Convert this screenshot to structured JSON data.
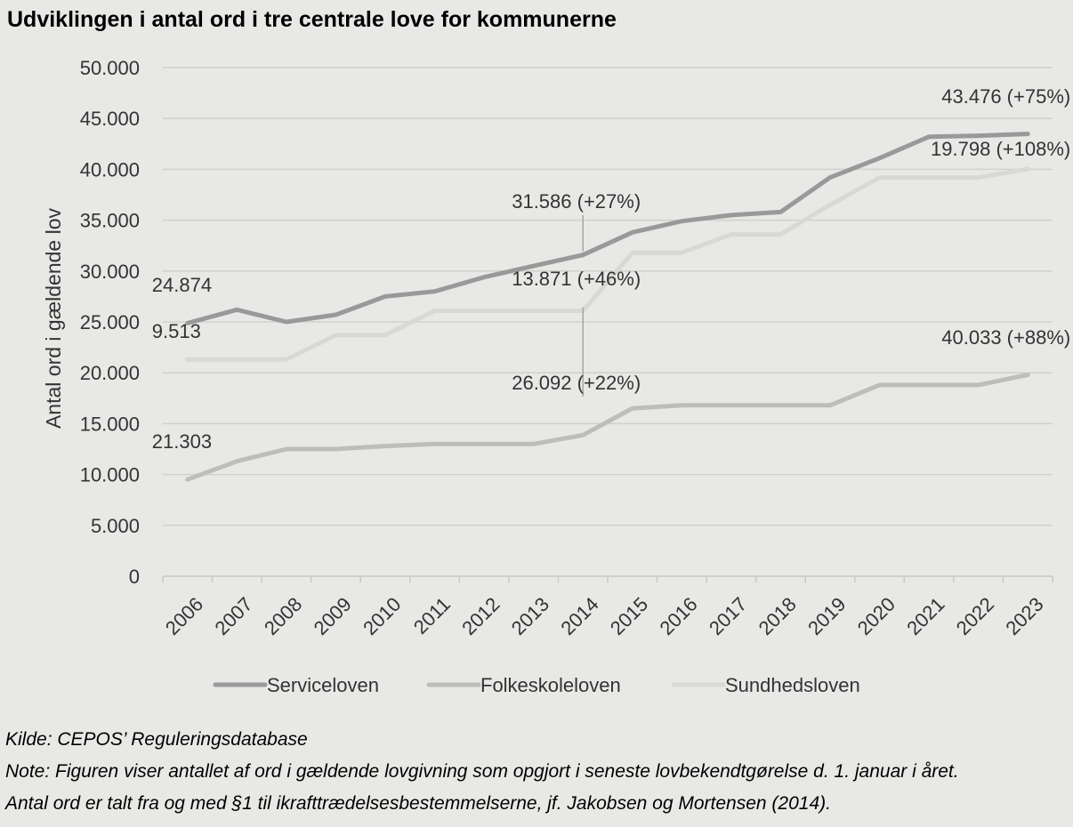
{
  "title": "Udviklingen i antal ord i tre centrale love for kommunerne",
  "source": "Kilde: CEPOS’ Reguleringsdatabase",
  "note_line1": "Note: Figuren viser antallet af ord i gældende lovgivning som opgjort i seneste lovbekendtgørelse d. 1. januar i året.",
  "note_line2": "Antal ord er talt fra og med §1 til ikrafttrædelsesbestemmelserne, jf. Jakobsen og Mortensen (2014).",
  "chart_data": {
    "type": "line",
    "title": "Udviklingen i antal ord i tre centrale love for kommunerne",
    "xlabel": "",
    "ylabel": "Antal ord i gældende lov",
    "ylim": [
      0,
      50000
    ],
    "yticks": [
      0,
      5000,
      10000,
      15000,
      20000,
      25000,
      30000,
      35000,
      40000,
      45000,
      50000
    ],
    "ytick_labels": [
      "0",
      "5.000",
      "10.000",
      "15.000",
      "20.000",
      "25.000",
      "30.000",
      "35.000",
      "40.000",
      "45.000",
      "50.000"
    ],
    "categories": [
      "2006",
      "2007",
      "2008",
      "2009",
      "2010",
      "2011",
      "2012",
      "2013",
      "2014",
      "2015",
      "2016",
      "2017",
      "2018",
      "2019",
      "2020",
      "2021",
      "2022",
      "2023"
    ],
    "grid": "horizontal",
    "legend_position": "bottom",
    "series": [
      {
        "name": "Serviceloven",
        "color": "#999999",
        "values": [
          24874,
          26200,
          25000,
          25700,
          27500,
          28000,
          29400,
          30500,
          31586,
          33800,
          34900,
          35500,
          35800,
          39200,
          41100,
          43200,
          43300,
          43476
        ]
      },
      {
        "name": "Folkeskoleloven",
        "color": "#bdbdb9",
        "values": [
          9513,
          11300,
          12500,
          12500,
          12800,
          13000,
          13000,
          13000,
          13871,
          16500,
          16800,
          16800,
          16800,
          16800,
          18800,
          18800,
          18800,
          19798
        ]
      },
      {
        "name": "Sundhedsloven",
        "color": "#d8d8d5",
        "values": [
          21303,
          21303,
          21303,
          23700,
          23700,
          26092,
          26092,
          26092,
          26092,
          31800,
          31800,
          33600,
          33600,
          36500,
          39200,
          39200,
          39200,
          40033
        ]
      }
    ],
    "annotations": [
      {
        "text": "24.874",
        "category": "2006",
        "value": 24874
      },
      {
        "text": "9.513",
        "category": "2006",
        "value": 9513
      },
      {
        "text": "21.303",
        "category": "2006",
        "value": 21303
      },
      {
        "text": "31.586 (+27%)",
        "category": "2014",
        "value": 31586
      },
      {
        "text": "13.871 (+46%)",
        "category": "2014",
        "value": 13871
      },
      {
        "text": "26.092 (+22%)",
        "category": "2014",
        "value": 26092
      },
      {
        "text": "43.476 (+75%)",
        "category": "2023",
        "value": 43476
      },
      {
        "text": "19.798 (+108%)",
        "category": "2023",
        "value": 19798
      },
      {
        "text": "40.033 (+88%)",
        "category": "2023",
        "value": 40033
      }
    ]
  }
}
